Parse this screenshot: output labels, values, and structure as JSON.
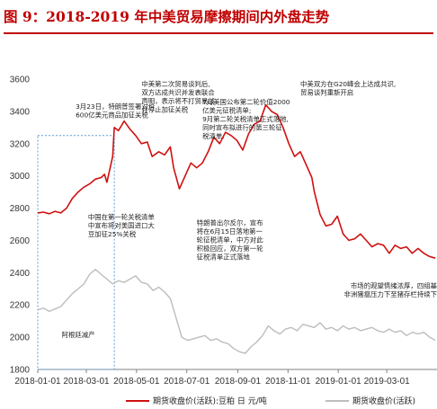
{
  "title": "图 9：2018-2019 年中美贸易摩擦期间内外盘走势",
  "colors": {
    "title": "#c00000",
    "domestic": "#d01010",
    "international": "#bdbdbd",
    "highlight": "#5b9bd5"
  },
  "chart_data": {
    "type": "line",
    "ylim": [
      1800,
      3600
    ],
    "yticks": [
      1800,
      2000,
      2200,
      2400,
      2600,
      2800,
      3000,
      3200,
      3400,
      3600
    ],
    "xlim": [
      "2018-01-01",
      "2019-05-01"
    ],
    "xticks": [
      "2018-01-01",
      "2018-03-01",
      "2018-05-01",
      "2018-07-01",
      "2018-09-01",
      "2018-11-01",
      "2019-01-01",
      "2019-03-01"
    ],
    "grid": false,
    "legend_position": "bottom",
    "series": [
      {
        "name": "期货收盘价(活跃):豆粕 日 元/吨",
        "values": [
          [
            "2018-01-01",
            2770
          ],
          [
            "2018-01-08",
            2775
          ],
          [
            "2018-01-15",
            2765
          ],
          [
            "2018-01-22",
            2780
          ],
          [
            "2018-01-29",
            2770
          ],
          [
            "2018-02-05",
            2800
          ],
          [
            "2018-02-12",
            2860
          ],
          [
            "2018-02-19",
            2900
          ],
          [
            "2018-02-26",
            2930
          ],
          [
            "2018-03-05",
            2950
          ],
          [
            "2018-03-12",
            2980
          ],
          [
            "2018-03-19",
            2990
          ],
          [
            "2018-03-23",
            3010
          ],
          [
            "2018-03-26",
            2960
          ],
          [
            "2018-04-02",
            3120
          ],
          [
            "2018-04-04",
            3300
          ],
          [
            "2018-04-09",
            3280
          ],
          [
            "2018-04-16",
            3340
          ],
          [
            "2018-04-23",
            3290
          ],
          [
            "2018-04-30",
            3250
          ],
          [
            "2018-05-07",
            3200
          ],
          [
            "2018-05-14",
            3210
          ],
          [
            "2018-05-20",
            3120
          ],
          [
            "2018-05-28",
            3150
          ],
          [
            "2018-06-04",
            3130
          ],
          [
            "2018-06-11",
            3180
          ],
          [
            "2018-06-15",
            3050
          ],
          [
            "2018-06-22",
            2920
          ],
          [
            "2018-06-29",
            3000
          ],
          [
            "2018-07-06",
            3080
          ],
          [
            "2018-07-13",
            3050
          ],
          [
            "2018-07-20",
            3080
          ],
          [
            "2018-07-27",
            3150
          ],
          [
            "2018-08-03",
            3240
          ],
          [
            "2018-08-10",
            3200
          ],
          [
            "2018-08-17",
            3270
          ],
          [
            "2018-08-24",
            3250
          ],
          [
            "2018-08-31",
            3220
          ],
          [
            "2018-09-07",
            3160
          ],
          [
            "2018-09-14",
            3260
          ],
          [
            "2018-09-21",
            3320
          ],
          [
            "2018-09-28",
            3340
          ],
          [
            "2018-10-05",
            3440
          ],
          [
            "2018-10-12",
            3400
          ],
          [
            "2018-10-19",
            3380
          ],
          [
            "2018-10-26",
            3300
          ],
          [
            "2018-11-02",
            3200
          ],
          [
            "2018-11-09",
            3120
          ],
          [
            "2018-11-16",
            3150
          ],
          [
            "2018-11-23",
            3070
          ],
          [
            "2018-11-30",
            2990
          ],
          [
            "2018-12-03",
            2900
          ],
          [
            "2018-12-10",
            2760
          ],
          [
            "2018-12-17",
            2690
          ],
          [
            "2018-12-24",
            2700
          ],
          [
            "2018-12-31",
            2750
          ],
          [
            "2019-01-07",
            2640
          ],
          [
            "2019-01-14",
            2600
          ],
          [
            "2019-01-21",
            2610
          ],
          [
            "2019-01-28",
            2640
          ],
          [
            "2019-02-04",
            2600
          ],
          [
            "2019-02-11",
            2560
          ],
          [
            "2019-02-18",
            2580
          ],
          [
            "2019-02-25",
            2570
          ],
          [
            "2019-03-04",
            2520
          ],
          [
            "2019-03-11",
            2570
          ],
          [
            "2019-03-18",
            2550
          ],
          [
            "2019-03-25",
            2560
          ],
          [
            "2019-04-01",
            2520
          ],
          [
            "2019-04-08",
            2550
          ],
          [
            "2019-04-15",
            2520
          ],
          [
            "2019-04-22",
            2500
          ],
          [
            "2019-04-29",
            2490
          ]
        ]
      },
      {
        "name": "期货收盘价(活跃)",
        "values": [
          [
            "2018-01-01",
            2170
          ],
          [
            "2018-01-08",
            2180
          ],
          [
            "2018-01-15",
            2160
          ],
          [
            "2018-01-22",
            2175
          ],
          [
            "2018-01-29",
            2190
          ],
          [
            "2018-02-05",
            2230
          ],
          [
            "2018-02-12",
            2270
          ],
          [
            "2018-02-19",
            2300
          ],
          [
            "2018-02-26",
            2330
          ],
          [
            "2018-03-05",
            2390
          ],
          [
            "2018-03-12",
            2420
          ],
          [
            "2018-03-19",
            2390
          ],
          [
            "2018-03-26",
            2360
          ],
          [
            "2018-04-02",
            2330
          ],
          [
            "2018-04-09",
            2350
          ],
          [
            "2018-04-16",
            2340
          ],
          [
            "2018-04-23",
            2360
          ],
          [
            "2018-04-30",
            2380
          ],
          [
            "2018-05-07",
            2340
          ],
          [
            "2018-05-14",
            2330
          ],
          [
            "2018-05-21",
            2290
          ],
          [
            "2018-05-28",
            2310
          ],
          [
            "2018-06-04",
            2280
          ],
          [
            "2018-06-11",
            2240
          ],
          [
            "2018-06-18",
            2120
          ],
          [
            "2018-06-25",
            2000
          ],
          [
            "2018-07-02",
            1980
          ],
          [
            "2018-07-09",
            1990
          ],
          [
            "2018-07-16",
            2000
          ],
          [
            "2018-07-23",
            2010
          ],
          [
            "2018-07-30",
            1980
          ],
          [
            "2018-08-06",
            1990
          ],
          [
            "2018-08-13",
            1970
          ],
          [
            "2018-08-20",
            1960
          ],
          [
            "2018-08-27",
            1930
          ],
          [
            "2018-09-03",
            1910
          ],
          [
            "2018-09-10",
            1900
          ],
          [
            "2018-09-17",
            1940
          ],
          [
            "2018-09-24",
            1970
          ],
          [
            "2018-10-01",
            2010
          ],
          [
            "2018-10-08",
            2070
          ],
          [
            "2018-10-15",
            2040
          ],
          [
            "2018-10-22",
            2020
          ],
          [
            "2018-10-29",
            2050
          ],
          [
            "2018-11-05",
            2060
          ],
          [
            "2018-11-12",
            2040
          ],
          [
            "2018-11-19",
            2080
          ],
          [
            "2018-11-26",
            2070
          ],
          [
            "2018-12-03",
            2060
          ],
          [
            "2018-12-10",
            2090
          ],
          [
            "2018-12-17",
            2050
          ],
          [
            "2018-12-24",
            2060
          ],
          [
            "2018-12-31",
            2040
          ],
          [
            "2019-01-07",
            2070
          ],
          [
            "2019-01-14",
            2050
          ],
          [
            "2019-01-21",
            2060
          ],
          [
            "2019-01-28",
            2040
          ],
          [
            "2019-02-04",
            2050
          ],
          [
            "2019-02-11",
            2060
          ],
          [
            "2019-02-18",
            2040
          ],
          [
            "2019-02-25",
            2030
          ],
          [
            "2019-03-04",
            2050
          ],
          [
            "2019-03-11",
            2030
          ],
          [
            "2019-03-18",
            2040
          ],
          [
            "2019-03-25",
            2010
          ],
          [
            "2019-04-01",
            2030
          ],
          [
            "2019-04-08",
            2020
          ],
          [
            "2019-04-15",
            2030
          ],
          [
            "2019-04-22",
            2000
          ],
          [
            "2019-04-29",
            1980
          ]
        ]
      }
    ],
    "highlight_box": {
      "x": [
        "2018-01-01",
        "2018-04-04"
      ],
      "y": [
        1800,
        3250
      ]
    },
    "annotations": [
      {
        "lines": [
          "中美第二次贸易谈判后,",
          "双方达成共识并发表联合",
          "声明，表示将不打贸易战",
          "并停止加征关税"
        ],
        "anchor": [
          "2018-05-07",
          3555
        ],
        "align": "start"
      },
      {
        "lines": [
          "中美双方在G20峰会上达成共识,",
          "贸易谈判重新开启"
        ],
        "anchor": [
          "2018-11-16",
          3555
        ],
        "align": "start"
      },
      {
        "lines": [
          "3月23日，特朗普签署对价",
          "600亿美元商品加征关税"
        ],
        "anchor": [
          "2018-02-16",
          3415
        ],
        "align": "start"
      },
      {
        "lines": [
          "7月美国公布第二轮价值2000",
          "亿美元征税清单;",
          "9月第二轮关税清单正式落地,",
          "同时宣布拟进行的第三轮征",
          "税清单."
        ],
        "anchor": [
          "2018-07-20",
          3445
        ],
        "align": "start"
      },
      {
        "lines": [
          "中国在第一轮关税清单",
          "中宣布将对美国进口大",
          "豆加征25%关税"
        ],
        "anchor": [
          "2018-03-03",
          2730
        ],
        "align": "start"
      },
      {
        "lines": [
          "特朗普出尔反尔，宣布",
          "将在6月15日落地第一",
          "轮征税清单，中方对此",
          "积极回应，双方第一轮",
          "征税清单正式落地"
        ],
        "anchor": [
          "2018-07-13",
          2695
        ],
        "align": "start"
      },
      {
        "lines": [
          "市场的观望情绪浓厚，四组基",
          "非洲猪瘟压力下至猪存栏持续下"
        ],
        "anchor": [
          "2019-05-01",
          2305
        ],
        "align": "end"
      },
      {
        "lines": [
          "阿根廷减产"
        ],
        "anchor": [
          "2018-01-30",
          2000
        ],
        "align": "start"
      }
    ]
  }
}
